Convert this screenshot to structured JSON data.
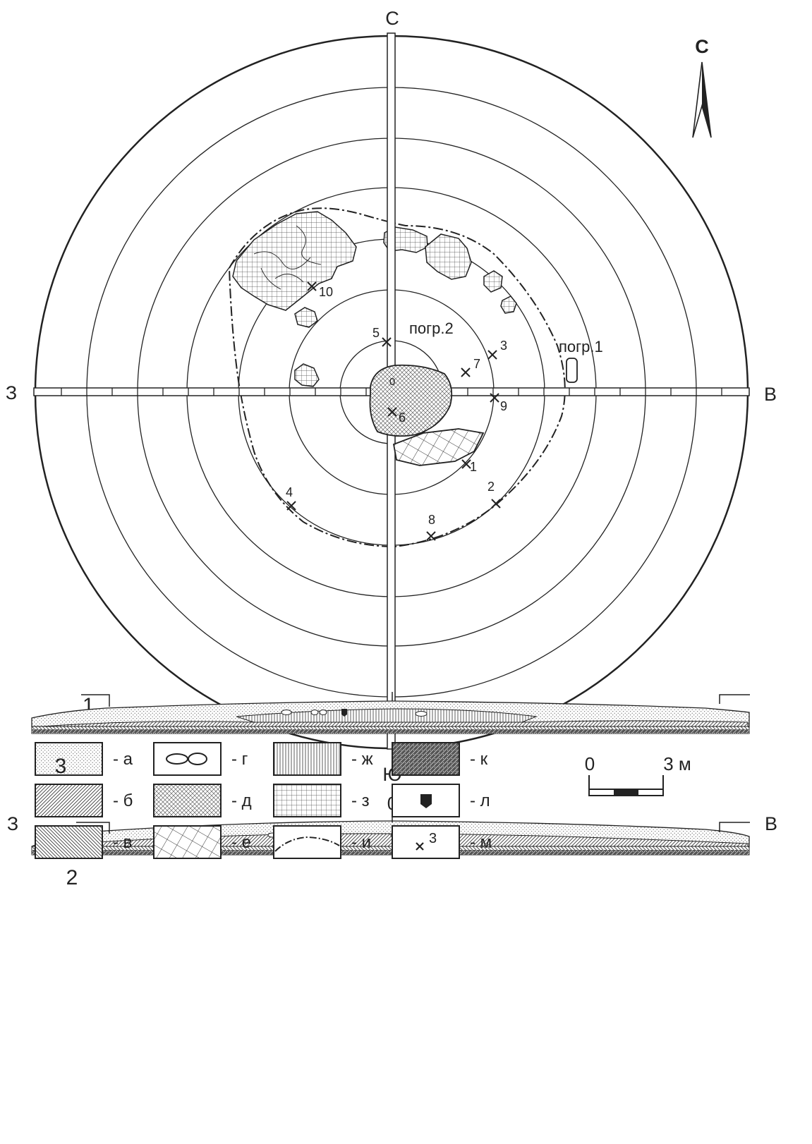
{
  "plan": {
    "figure_number": "1",
    "directions": {
      "north": "С",
      "south": "Ю",
      "west": "З",
      "east": "В"
    },
    "north_arrow_label": "С",
    "center_label": "0",
    "burial_labels": {
      "burial1": "погр.1",
      "burial2": "погр.2"
    },
    "finds": [
      "1",
      "2",
      "3",
      "4",
      "5",
      "6",
      "7",
      "8",
      "9",
      "10"
    ]
  },
  "section_we": {
    "figure_number": "2",
    "zero_label": "0",
    "left_label": "З",
    "right_label": "В"
  },
  "section_ns": {
    "zero_label": "0",
    "left_label": "С",
    "right_label": "Ю"
  },
  "legend": {
    "figure_number": "3",
    "items": [
      {
        "key": "a",
        "label": "- а"
      },
      {
        "key": "b",
        "label": "- б"
      },
      {
        "key": "v",
        "label": "- в"
      },
      {
        "key": "g",
        "label": "- г"
      },
      {
        "key": "d",
        "label": "- д"
      },
      {
        "key": "e",
        "label": "- е"
      },
      {
        "key": "zh",
        "label": "- ж"
      },
      {
        "key": "z",
        "label": "- з"
      },
      {
        "key": "i",
        "label": "- и"
      },
      {
        "key": "k",
        "label": "- к"
      },
      {
        "key": "l",
        "label": "- л"
      },
      {
        "key": "m",
        "label": "- м"
      }
    ],
    "m_sample_number": "3"
  },
  "scale_bar": {
    "zero": "0",
    "max": "3 м"
  }
}
